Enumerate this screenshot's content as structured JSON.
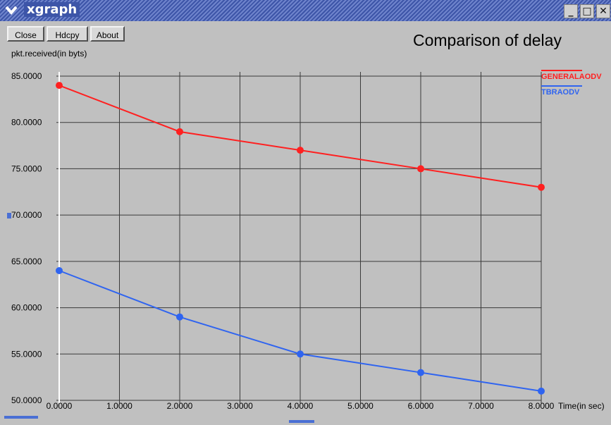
{
  "window": {
    "title": "xgraph",
    "controls": [
      "minimize-icon",
      "maximize-icon",
      "close-icon"
    ]
  },
  "toolbar": {
    "close_label": "Close",
    "hdcpy_label": "Hdcpy",
    "about_label": "About"
  },
  "colors": {
    "grid": "#3a3a3a",
    "background": "#c0c0c0",
    "series1": "#ff2020",
    "series2": "#2f64f0",
    "zero_axis": "#ffffff"
  },
  "chart_data": {
    "type": "line",
    "title": "Comparison of delay",
    "ylabel": "pkt.received(in byts)",
    "xlabel": "Time(in sec)",
    "xlim": [
      0,
      8
    ],
    "ylim": [
      50,
      85
    ],
    "x_ticks": [
      "0.0000",
      "1.0000",
      "2.0000",
      "3.0000",
      "4.0000",
      "5.0000",
      "6.0000",
      "7.0000",
      "8.0000"
    ],
    "y_ticks": [
      "50.0000",
      "55.0000",
      "60.0000",
      "65.0000",
      "70.0000",
      "75.0000",
      "80.0000",
      "85.0000"
    ],
    "grid": true,
    "legend_position": "right",
    "series": [
      {
        "name": "GENERALAODV",
        "color": "#ff2020",
        "x": [
          0,
          2,
          4,
          6,
          8
        ],
        "y": [
          84,
          79,
          77,
          75,
          73
        ]
      },
      {
        "name": "TBRAODV",
        "color": "#2f64f0",
        "x": [
          0,
          2,
          4,
          6,
          8
        ],
        "y": [
          64,
          59,
          55,
          53,
          51
        ]
      }
    ]
  }
}
